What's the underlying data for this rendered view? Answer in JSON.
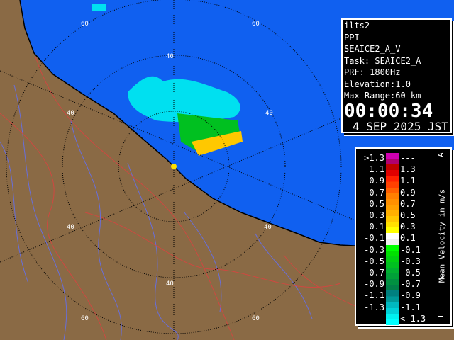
{
  "map": {
    "colors": {
      "sea": "#1060f0",
      "land": "#8a6a45",
      "rivers": "#6070ff",
      "boundaries": "#e04040",
      "rings": "#000000"
    },
    "range_labels": [
      "20",
      "40",
      "60"
    ]
  },
  "info": {
    "station": "ilts2",
    "mode": "PPI",
    "product": "SEAICE2_A_V",
    "task": "Task: SEAICE2_A",
    "prf": "PRF: 1800Hz",
    "elevation": "Elevation:1.0",
    "max_range": "Max Range:60 km",
    "time": "00:00:34",
    "date": "4 SEP 2025 JST"
  },
  "legend": {
    "title": "Mean Velocity in m/s",
    "top_mark": "A",
    "bottom_mark": "T",
    "rows": [
      {
        "left": ">1.3",
        "right": "---",
        "colors": [
          "#d000b0",
          "#b00070"
        ]
      },
      {
        "left": "1.1",
        "right": "1.3",
        "colors": [
          "#c00000",
          "#e00000"
        ]
      },
      {
        "left": "0.9",
        "right": "1.1",
        "colors": [
          "#ff2000",
          "#ff4000"
        ]
      },
      {
        "left": "0.7",
        "right": "0.9",
        "colors": [
          "#ff6000",
          "#ff8000"
        ]
      },
      {
        "left": "0.5",
        "right": "0.7",
        "colors": [
          "#ff9000",
          "#ffa000"
        ]
      },
      {
        "left": "0.3",
        "right": "0.5",
        "colors": [
          "#ffb000",
          "#ffc800"
        ]
      },
      {
        "left": "0.1",
        "right": "0.3",
        "colors": [
          "#ffe000",
          "#ffff00"
        ]
      },
      {
        "left": "-0.1",
        "right": "0.1",
        "colors": [
          "#ffffff",
          "#f0f0f0"
        ]
      },
      {
        "left": "-0.3",
        "right": "-0.1",
        "colors": [
          "#00ff00",
          "#00e000"
        ]
      },
      {
        "left": "-0.5",
        "right": "-0.3",
        "colors": [
          "#00d010",
          "#00c020"
        ]
      },
      {
        "left": "-0.7",
        "right": "-0.5",
        "colors": [
          "#00b030",
          "#00a038"
        ]
      },
      {
        "left": "-0.9",
        "right": "-0.7",
        "colors": [
          "#009040",
          "#008048"
        ]
      },
      {
        "left": "-1.1",
        "right": "-0.9",
        "colors": [
          "#008080",
          "#009898"
        ]
      },
      {
        "left": "-1.3",
        "right": "-1.1",
        "colors": [
          "#00b8c0",
          "#00d0d8"
        ]
      },
      {
        "left": "---",
        "right": "<-1.3",
        "colors": [
          "#00f0f0",
          "#00ffff"
        ]
      }
    ]
  }
}
